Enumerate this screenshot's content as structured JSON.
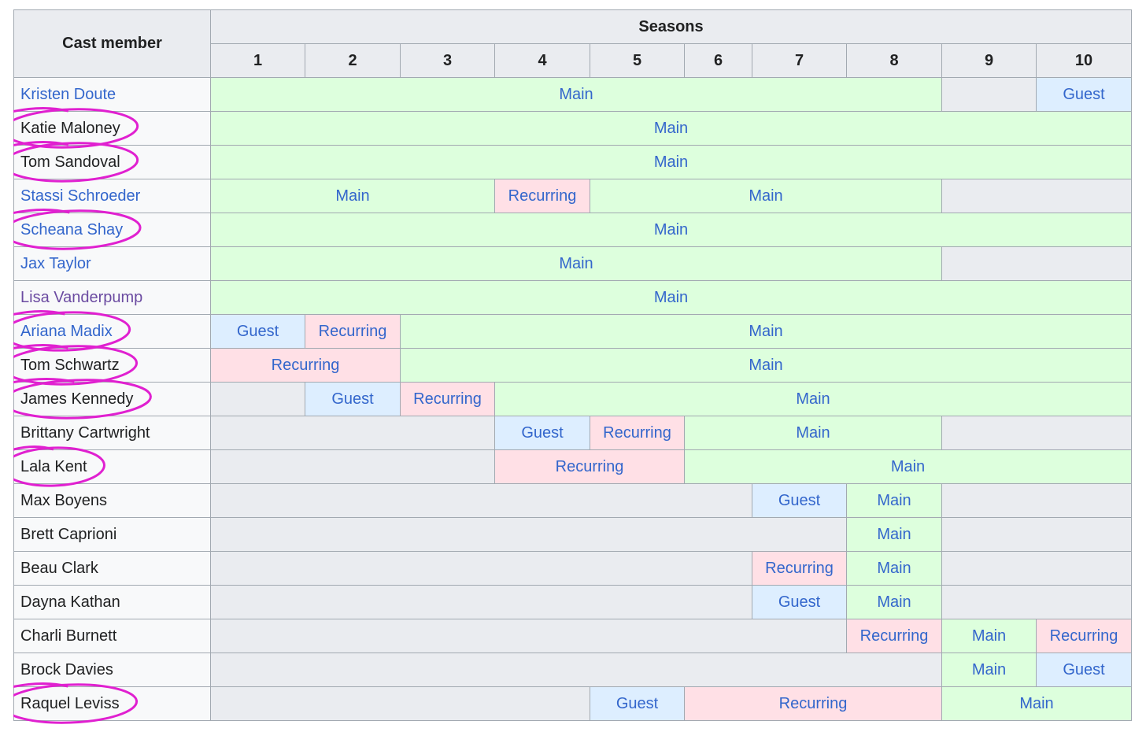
{
  "header": {
    "cast_label": "Cast member",
    "seasons_label": "Seasons",
    "seasons": [
      "1",
      "2",
      "3",
      "4",
      "5",
      "6",
      "7",
      "8",
      "9",
      "10"
    ]
  },
  "colors": {
    "main": "#ddffdd",
    "recurring": "#ffe0e6",
    "guest": "#ddeeff",
    "none": "#eaecf0",
    "link": "#3366cc",
    "visited": "#6b4ba1",
    "annotation": "#e020d0"
  },
  "cast": [
    {
      "name": "Kristen Doute",
      "style": "link",
      "circled": false,
      "segments": [
        {
          "span": 8,
          "status": "Main"
        },
        {
          "span": 1,
          "status": ""
        },
        {
          "span": 1,
          "status": "Guest"
        }
      ]
    },
    {
      "name": "Katie Maloney",
      "style": "plain",
      "circled": true,
      "segments": [
        {
          "span": 10,
          "status": "Main"
        }
      ]
    },
    {
      "name": "Tom Sandoval",
      "style": "plain",
      "circled": true,
      "segments": [
        {
          "span": 10,
          "status": "Main"
        }
      ]
    },
    {
      "name": "Stassi Schroeder",
      "style": "link",
      "circled": false,
      "segments": [
        {
          "span": 3,
          "status": "Main"
        },
        {
          "span": 1,
          "status": "Recurring"
        },
        {
          "span": 4,
          "status": "Main"
        },
        {
          "span": 2,
          "status": ""
        }
      ]
    },
    {
      "name": "Scheana Shay",
      "style": "link",
      "circled": true,
      "segments": [
        {
          "span": 10,
          "status": "Main"
        }
      ]
    },
    {
      "name": "Jax Taylor",
      "style": "link",
      "circled": false,
      "segments": [
        {
          "span": 8,
          "status": "Main"
        },
        {
          "span": 2,
          "status": ""
        }
      ]
    },
    {
      "name": "Lisa Vanderpump",
      "style": "visited",
      "circled": false,
      "segments": [
        {
          "span": 10,
          "status": "Main"
        }
      ]
    },
    {
      "name": "Ariana Madix",
      "style": "link",
      "circled": true,
      "segments": [
        {
          "span": 1,
          "status": "Guest"
        },
        {
          "span": 1,
          "status": "Recurring"
        },
        {
          "span": 8,
          "status": "Main"
        }
      ]
    },
    {
      "name": "Tom Schwartz",
      "style": "plain",
      "circled": true,
      "segments": [
        {
          "span": 2,
          "status": "Recurring"
        },
        {
          "span": 8,
          "status": "Main"
        }
      ]
    },
    {
      "name": "James Kennedy",
      "style": "plain",
      "circled": true,
      "segments": [
        {
          "span": 1,
          "status": ""
        },
        {
          "span": 1,
          "status": "Guest"
        },
        {
          "span": 1,
          "status": "Recurring"
        },
        {
          "span": 7,
          "status": "Main"
        }
      ]
    },
    {
      "name": "Brittany Cartwright",
      "style": "plain",
      "circled": false,
      "segments": [
        {
          "span": 3,
          "status": ""
        },
        {
          "span": 1,
          "status": "Guest"
        },
        {
          "span": 1,
          "status": "Recurring"
        },
        {
          "span": 3,
          "status": "Main"
        },
        {
          "span": 2,
          "status": ""
        }
      ]
    },
    {
      "name": "Lala Kent",
      "style": "plain",
      "circled": true,
      "segments": [
        {
          "span": 3,
          "status": ""
        },
        {
          "span": 2,
          "status": "Recurring"
        },
        {
          "span": 5,
          "status": "Main"
        }
      ]
    },
    {
      "name": "Max Boyens",
      "style": "plain",
      "circled": false,
      "segments": [
        {
          "span": 6,
          "status": ""
        },
        {
          "span": 1,
          "status": "Guest"
        },
        {
          "span": 1,
          "status": "Main"
        },
        {
          "span": 2,
          "status": ""
        }
      ]
    },
    {
      "name": "Brett Caprioni",
      "style": "plain",
      "circled": false,
      "segments": [
        {
          "span": 7,
          "status": ""
        },
        {
          "span": 1,
          "status": "Main"
        },
        {
          "span": 2,
          "status": ""
        }
      ]
    },
    {
      "name": "Beau Clark",
      "style": "plain",
      "circled": false,
      "segments": [
        {
          "span": 6,
          "status": ""
        },
        {
          "span": 1,
          "status": "Recurring"
        },
        {
          "span": 1,
          "status": "Main"
        },
        {
          "span": 2,
          "status": ""
        }
      ]
    },
    {
      "name": "Dayna Kathan",
      "style": "plain",
      "circled": false,
      "segments": [
        {
          "span": 6,
          "status": ""
        },
        {
          "span": 1,
          "status": "Guest"
        },
        {
          "span": 1,
          "status": "Main"
        },
        {
          "span": 2,
          "status": ""
        }
      ]
    },
    {
      "name": "Charli Burnett",
      "style": "plain",
      "circled": false,
      "segments": [
        {
          "span": 7,
          "status": ""
        },
        {
          "span": 1,
          "status": "Recurring"
        },
        {
          "span": 1,
          "status": "Main"
        },
        {
          "span": 1,
          "status": "Recurring"
        }
      ]
    },
    {
      "name": "Brock Davies",
      "style": "plain",
      "circled": false,
      "segments": [
        {
          "span": 8,
          "status": ""
        },
        {
          "span": 1,
          "status": "Main"
        },
        {
          "span": 1,
          "status": "Guest"
        }
      ]
    },
    {
      "name": "Raquel Leviss",
      "style": "plain",
      "circled": true,
      "segments": [
        {
          "span": 4,
          "status": ""
        },
        {
          "span": 1,
          "status": "Guest"
        },
        {
          "span": 3,
          "status": "Recurring"
        },
        {
          "span": 2,
          "status": "Main"
        }
      ]
    }
  ]
}
